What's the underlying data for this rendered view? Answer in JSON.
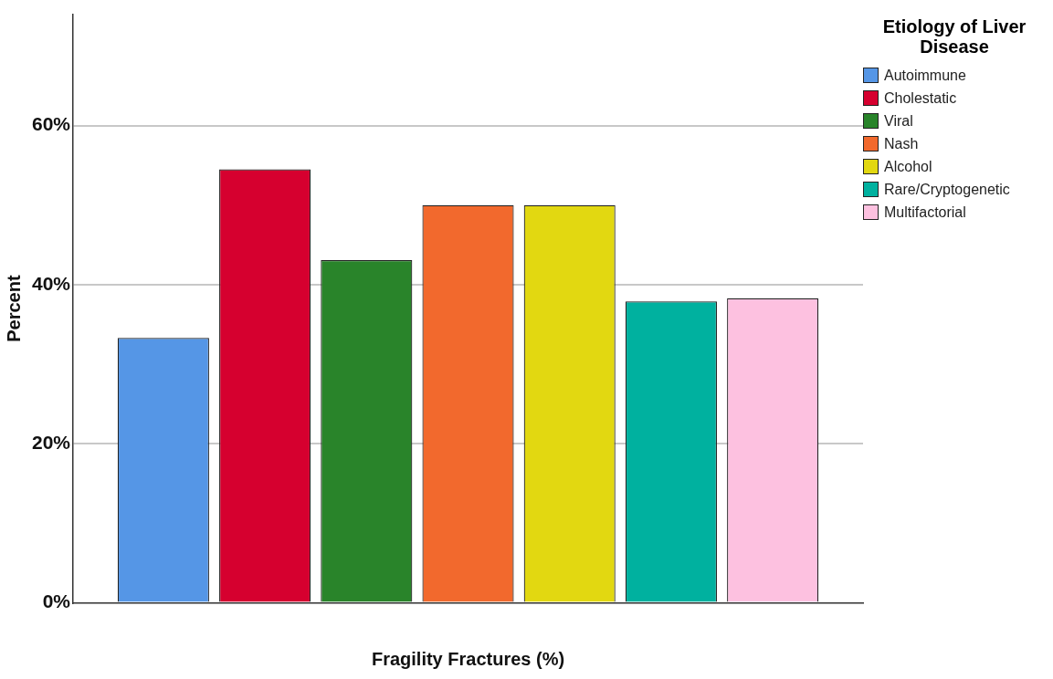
{
  "chart_data": {
    "type": "bar",
    "xlabel": "Fragility Fractures (%)",
    "ylabel": "Percent",
    "legend_title": "Etiology of Liver Disease",
    "categories": [
      null
    ],
    "series": [
      {
        "name": "Autoimmune",
        "color": "#5596e6",
        "values": [
          33.3
        ]
      },
      {
        "name": "Cholestatic",
        "color": "#d6002f",
        "values": [
          54.5
        ]
      },
      {
        "name": "Viral",
        "color": "#29842a",
        "values": [
          43.1
        ]
      },
      {
        "name": "Nash",
        "color": "#f2692d",
        "values": [
          50.0
        ]
      },
      {
        "name": "Alcohol",
        "color": "#e2d811",
        "values": [
          50.0
        ]
      },
      {
        "name": "Rare/Cryptogenetic",
        "color": "#00b19f",
        "values": [
          37.9
        ]
      },
      {
        "name": "Multifactorial",
        "color": "#fdc1e0",
        "values": [
          38.3
        ]
      }
    ],
    "ylim": [
      0,
      74
    ],
    "yticks": [
      {
        "value": 0,
        "label": "0%"
      },
      {
        "value": 20,
        "label": "20%"
      },
      {
        "value": 40,
        "label": "40%"
      },
      {
        "value": 60,
        "label": "60%"
      }
    ],
    "grid": "y",
    "legend": "right"
  }
}
